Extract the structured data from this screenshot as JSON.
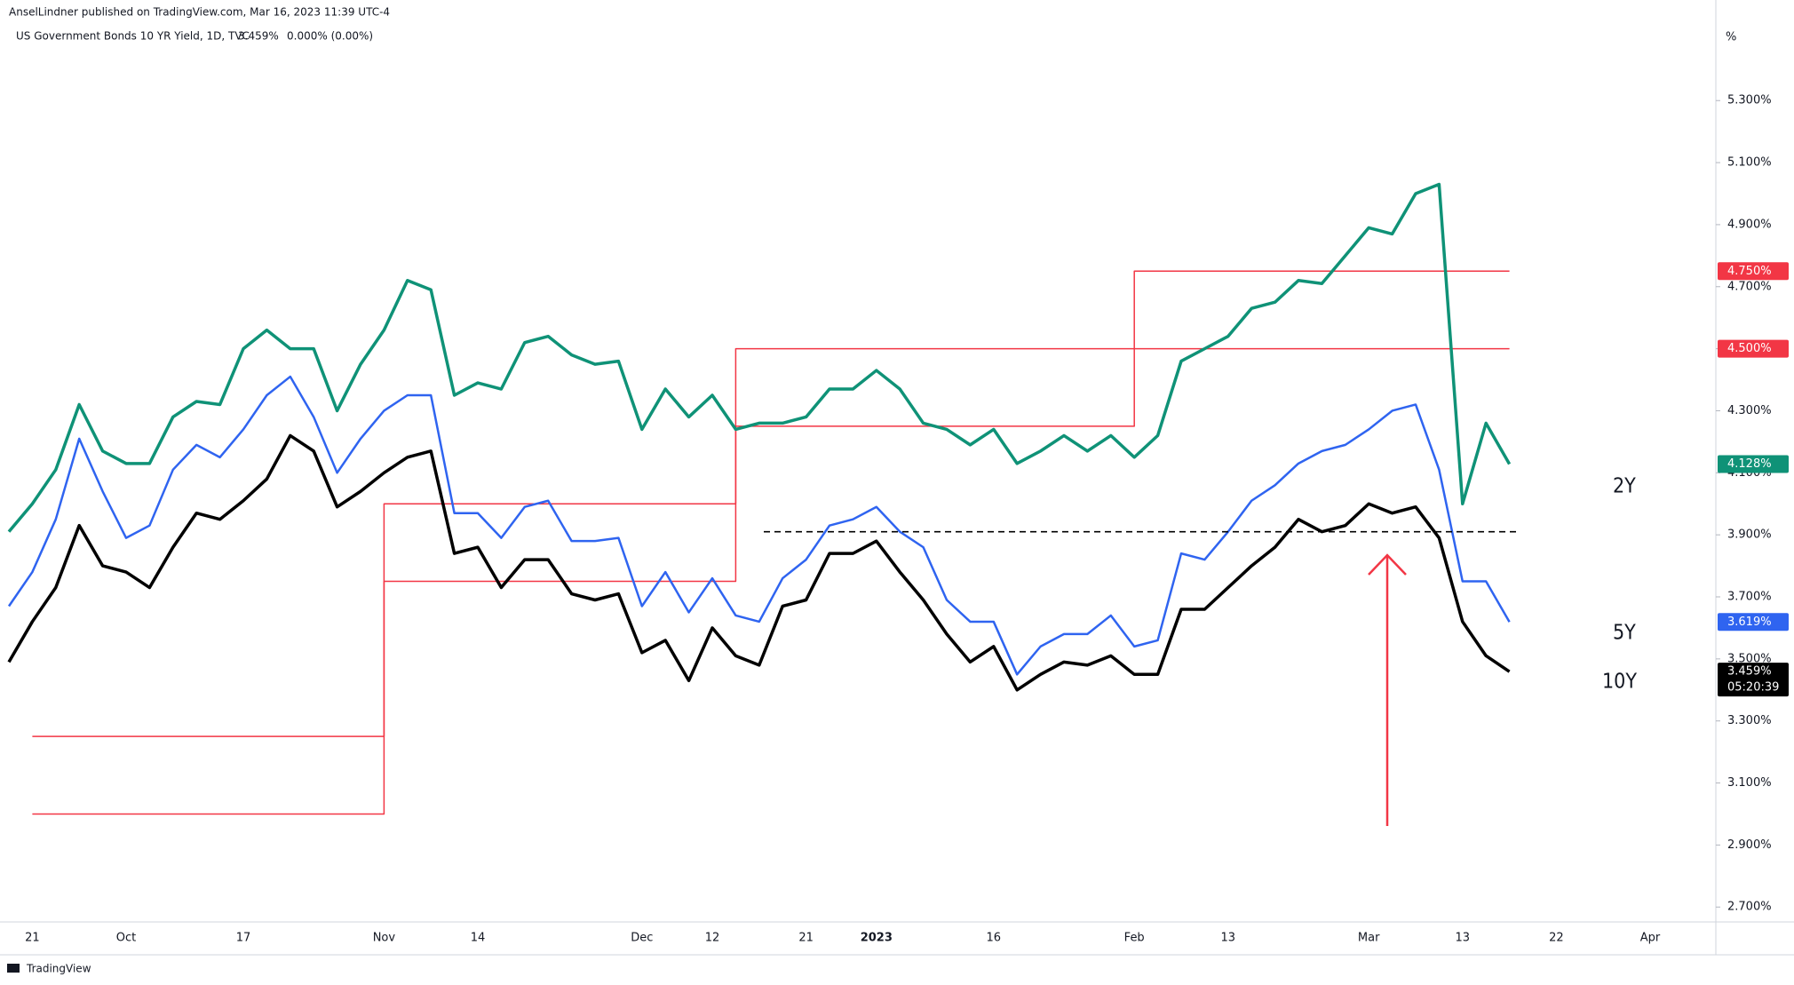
{
  "header": {
    "publisher": "AnselLindner published on TradingView.com, Mar 16, 2023 11:39 UTC-4",
    "symbol": "US Government Bonds 10 YR Yield, 1D, TVC",
    "last": "3.459%",
    "change": "0.000% (0.00%)"
  },
  "footer": {
    "brand": "TradingView"
  },
  "chart_data": {
    "type": "line",
    "y_unit": "%",
    "categories": [
      null,
      "21",
      null,
      null,
      null,
      "Oct",
      null,
      null,
      null,
      null,
      "17",
      null,
      null,
      null,
      null,
      null,
      "Nov",
      null,
      null,
      null,
      "14",
      null,
      null,
      null,
      null,
      null,
      null,
      "Dec",
      null,
      null,
      "12",
      null,
      null,
      null,
      "21",
      null,
      null,
      "2023",
      null,
      null,
      null,
      null,
      "16",
      null,
      null,
      null,
      null,
      null,
      "Feb",
      null,
      null,
      null,
      "13",
      null,
      null,
      null,
      null,
      null,
      "Mar",
      null,
      null,
      null,
      "13",
      null,
      null,
      null,
      "22",
      null,
      null,
      null,
      "Apr",
      null,
      null
    ],
    "ylim": [
      2.652,
      5.587
    ],
    "yticks": [
      {
        "value": 2.7,
        "label": "2.700%"
      },
      {
        "value": 2.9,
        "label": "2.900%"
      },
      {
        "value": 3.1,
        "label": "3.100%"
      },
      {
        "value": 3.3,
        "label": "3.300%"
      },
      {
        "value": 3.5,
        "label": "3.500%"
      },
      {
        "value": 3.7,
        "label": "3.700%"
      },
      {
        "value": 3.9,
        "label": "3.900%"
      },
      {
        "value": 4.1,
        "label": "4.100%"
      },
      {
        "value": 4.3,
        "label": "4.300%"
      },
      {
        "value": 4.5,
        "label": "4.500%"
      },
      {
        "value": 4.7,
        "label": "4.700%"
      },
      {
        "value": 4.9,
        "label": "4.900%"
      },
      {
        "value": 5.1,
        "label": "5.100%"
      },
      {
        "value": 5.3,
        "label": "5.300%"
      }
    ],
    "grid": false,
    "reference_line": {
      "value": 3.91
    },
    "series": [
      {
        "color": "#f23645",
        "style": "step",
        "last_value_label": "4.750%",
        "values": [
          null,
          3.25,
          3.25,
          3.25,
          3.25,
          3.25,
          3.25,
          3.25,
          3.25,
          3.25,
          3.25,
          3.25,
          3.25,
          3.25,
          3.25,
          3.25,
          4.0,
          4.0,
          4.0,
          4.0,
          4.0,
          4.0,
          4.0,
          4.0,
          4.0,
          4.0,
          4.0,
          4.0,
          4.0,
          4.0,
          4.0,
          4.5,
          4.5,
          4.5,
          4.5,
          4.5,
          4.5,
          4.5,
          4.5,
          4.5,
          4.5,
          4.5,
          4.5,
          4.5,
          4.5,
          4.5,
          4.5,
          4.5,
          4.75,
          4.75,
          4.75,
          4.75,
          4.75,
          4.75,
          4.75,
          4.75,
          4.75,
          4.75,
          4.75,
          4.75,
          4.75,
          4.75,
          4.75,
          4.75,
          4.75,
          null,
          null,
          null,
          null,
          null,
          null,
          null,
          null
        ]
      },
      {
        "color": "#f23645",
        "style": "step",
        "last_value_label": "4.500%",
        "values": [
          null,
          3.0,
          3.0,
          3.0,
          3.0,
          3.0,
          3.0,
          3.0,
          3.0,
          3.0,
          3.0,
          3.0,
          3.0,
          3.0,
          3.0,
          3.0,
          3.75,
          3.75,
          3.75,
          3.75,
          3.75,
          3.75,
          3.75,
          3.75,
          3.75,
          3.75,
          3.75,
          3.75,
          3.75,
          3.75,
          3.75,
          4.25,
          4.25,
          4.25,
          4.25,
          4.25,
          4.25,
          4.25,
          4.25,
          4.25,
          4.25,
          4.25,
          4.25,
          4.25,
          4.25,
          4.25,
          4.25,
          4.25,
          4.5,
          4.5,
          4.5,
          4.5,
          4.5,
          4.5,
          4.5,
          4.5,
          4.5,
          4.5,
          4.5,
          4.5,
          4.5,
          4.5,
          4.5,
          4.5,
          4.5,
          null,
          null,
          null,
          null,
          null,
          null,
          null,
          null
        ]
      },
      {
        "name": "2Y",
        "color": "#0f9277",
        "width": 3.5,
        "last_value_label": "4.128%",
        "values": [
          3.91,
          4.0,
          4.11,
          4.32,
          4.17,
          4.13,
          4.13,
          4.28,
          4.33,
          4.32,
          4.5,
          4.56,
          4.5,
          4.5,
          4.3,
          4.45,
          4.56,
          4.72,
          4.69,
          4.35,
          4.39,
          4.37,
          4.52,
          4.54,
          4.48,
          4.45,
          4.46,
          4.24,
          4.37,
          4.28,
          4.35,
          4.24,
          4.26,
          4.26,
          4.28,
          4.37,
          4.37,
          4.43,
          4.37,
          4.26,
          4.24,
          4.19,
          4.24,
          4.13,
          4.17,
          4.22,
          4.17,
          4.22,
          4.15,
          4.22,
          4.46,
          4.5,
          4.54,
          4.63,
          4.65,
          4.72,
          4.71,
          4.8,
          4.89,
          4.87,
          5.0,
          5.03,
          4.0,
          4.26,
          4.128,
          null,
          null,
          null,
          null,
          null,
          null,
          null,
          null
        ]
      },
      {
        "name": "5Y",
        "color": "#2f64f0",
        "width": 2.5,
        "last_value_label": "3.619%",
        "values": [
          3.67,
          3.78,
          3.95,
          4.21,
          4.04,
          3.89,
          3.93,
          4.11,
          4.19,
          4.15,
          4.24,
          4.35,
          4.41,
          4.28,
          4.1,
          4.21,
          4.3,
          4.35,
          4.35,
          3.97,
          3.97,
          3.89,
          3.99,
          4.01,
          3.88,
          3.88,
          3.89,
          3.67,
          3.78,
          3.65,
          3.76,
          3.64,
          3.62,
          3.76,
          3.82,
          3.93,
          3.95,
          3.99,
          3.91,
          3.86,
          3.69,
          3.62,
          3.62,
          3.45,
          3.54,
          3.58,
          3.58,
          3.64,
          3.54,
          3.56,
          3.84,
          3.82,
          3.91,
          4.01,
          4.06,
          4.13,
          4.17,
          4.19,
          4.24,
          4.3,
          4.32,
          4.11,
          3.75,
          3.75,
          3.619,
          null,
          null,
          null,
          null,
          null,
          null,
          null,
          null
        ]
      },
      {
        "name": "10Y",
        "color": "#000000",
        "width": 3.5,
        "last_value_label": "3.459%",
        "countdown": "05:20:39",
        "values": [
          3.49,
          3.62,
          3.73,
          3.93,
          3.8,
          3.78,
          3.73,
          3.86,
          3.97,
          3.95,
          4.01,
          4.08,
          4.22,
          4.17,
          3.99,
          4.04,
          4.1,
          4.15,
          4.17,
          3.84,
          3.86,
          3.73,
          3.82,
          3.82,
          3.71,
          3.69,
          3.71,
          3.52,
          3.56,
          3.43,
          3.6,
          3.51,
          3.48,
          3.67,
          3.69,
          3.84,
          3.84,
          3.88,
          3.78,
          3.69,
          3.58,
          3.49,
          3.54,
          3.4,
          3.45,
          3.49,
          3.48,
          3.51,
          3.45,
          3.45,
          3.66,
          3.66,
          3.73,
          3.8,
          3.86,
          3.95,
          3.91,
          3.93,
          4.0,
          3.97,
          3.99,
          3.89,
          3.62,
          3.51,
          3.459,
          null,
          null,
          null,
          null,
          null,
          null,
          null,
          null
        ]
      }
    ]
  }
}
